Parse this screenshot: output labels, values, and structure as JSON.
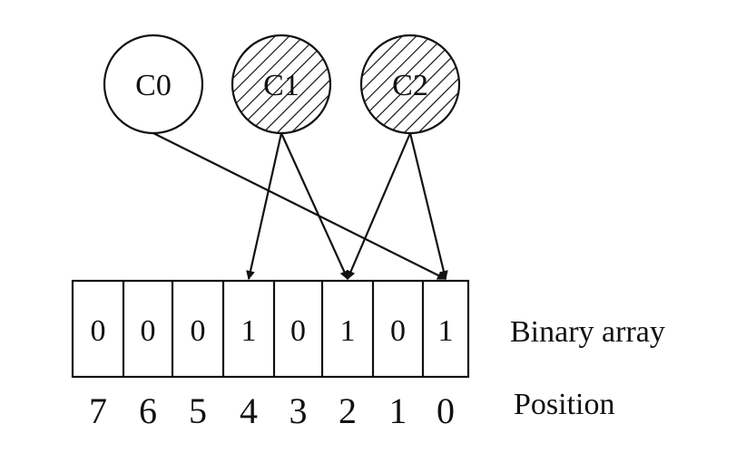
{
  "nodes": [
    {
      "label": "C0",
      "hatched": false,
      "targets": [
        0
      ]
    },
    {
      "label": "C1",
      "hatched": true,
      "targets": [
        4,
        2
      ]
    },
    {
      "label": "C2",
      "hatched": true,
      "targets": [
        2,
        0
      ]
    }
  ],
  "array": {
    "bits": [
      "0",
      "0",
      "0",
      "1",
      "0",
      "1",
      "0",
      "1"
    ],
    "positions": [
      "7",
      "6",
      "5",
      "4",
      "3",
      "2",
      "1",
      "0"
    ]
  },
  "labels": {
    "binary_array": "Binary array",
    "position": "Position"
  }
}
